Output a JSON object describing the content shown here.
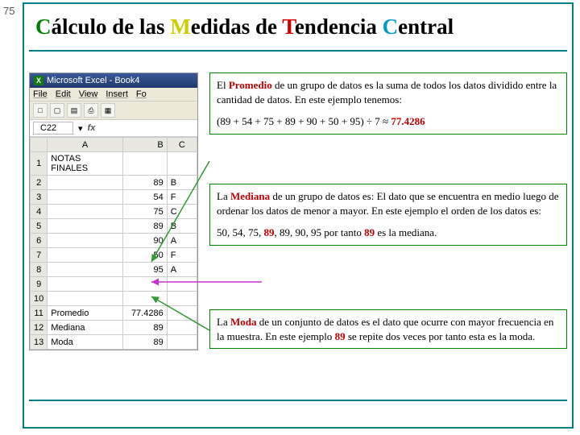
{
  "page_number": "75",
  "title": {
    "parts": [
      "C",
      "álculo de las ",
      "M",
      "edidas de ",
      "T",
      "endencia ",
      "C",
      "entral"
    ]
  },
  "excel": {
    "app_title": "Microsoft Excel - Book4",
    "menus": [
      "File",
      "Edit",
      "View",
      "Insert",
      "Fo"
    ],
    "toolbar_icons": [
      "□",
      "▢",
      "▤",
      "⎙",
      "▦"
    ],
    "cell_ref": "C22",
    "fx_label": "fx",
    "columns": [
      "",
      "A",
      "B",
      "C"
    ],
    "rows": [
      {
        "n": "1",
        "a": "NOTAS FINALES",
        "b": "",
        "c": ""
      },
      {
        "n": "2",
        "a": "",
        "b": "89",
        "c": "B"
      },
      {
        "n": "3",
        "a": "",
        "b": "54",
        "c": "F"
      },
      {
        "n": "4",
        "a": "",
        "b": "75",
        "c": "C"
      },
      {
        "n": "5",
        "a": "",
        "b": "89",
        "c": "B"
      },
      {
        "n": "6",
        "a": "",
        "b": "90",
        "c": "A"
      },
      {
        "n": "7",
        "a": "",
        "b": "50",
        "c": "F"
      },
      {
        "n": "8",
        "a": "",
        "b": "95",
        "c": "A"
      },
      {
        "n": "9",
        "a": "",
        "b": "",
        "c": ""
      },
      {
        "n": "10",
        "a": "",
        "b": "",
        "c": ""
      },
      {
        "n": "11",
        "a": "Promedio",
        "b": "77.4286",
        "c": ""
      },
      {
        "n": "12",
        "a": "Mediana",
        "b": "89",
        "c": ""
      },
      {
        "n": "13",
        "a": "Moda",
        "b": "89",
        "c": ""
      }
    ]
  },
  "box1": {
    "p1_a": "El ",
    "p1_hl": "Promedio",
    "p1_b": " de un grupo de datos es la suma de todos los datos dividido entre la cantidad de datos.  En este ejemplo tenemos:",
    "p2_a": "(89 + 54 + 75 + 89 + 90 + 50 + 95) ÷ 7  ≈  ",
    "p2_hl": "77.4286"
  },
  "box2": {
    "p1_a": "La ",
    "p1_hl": "Mediana",
    "p1_b": " de un grupo de datos es:  El dato que se encuentra en medio luego de ordenar los datos de menor a mayor.  En este ejemplo el orden de los datos es:",
    "p2_a": "50, 54, 75, ",
    "p2_hl": "89",
    "p2_b": ", 89, 90, 95   por tanto ",
    "p2_hl2": "89",
    "p2_c": " es la mediana."
  },
  "box3": {
    "p1_a": "La ",
    "p1_hl": "Moda",
    "p1_b": " de un conjunto de datos es el dato que ocurre con mayor frecuencia en la muestra.  En este ejemplo ",
    "p1_hl2": "89",
    "p1_c": " se repite dos veces por tanto esta es la moda."
  },
  "colors": {
    "border": "#008080",
    "box_border": "#008000",
    "hl": "#c00000",
    "arrow_green": "#339933",
    "arrow_magenta": "#cc33cc"
  }
}
